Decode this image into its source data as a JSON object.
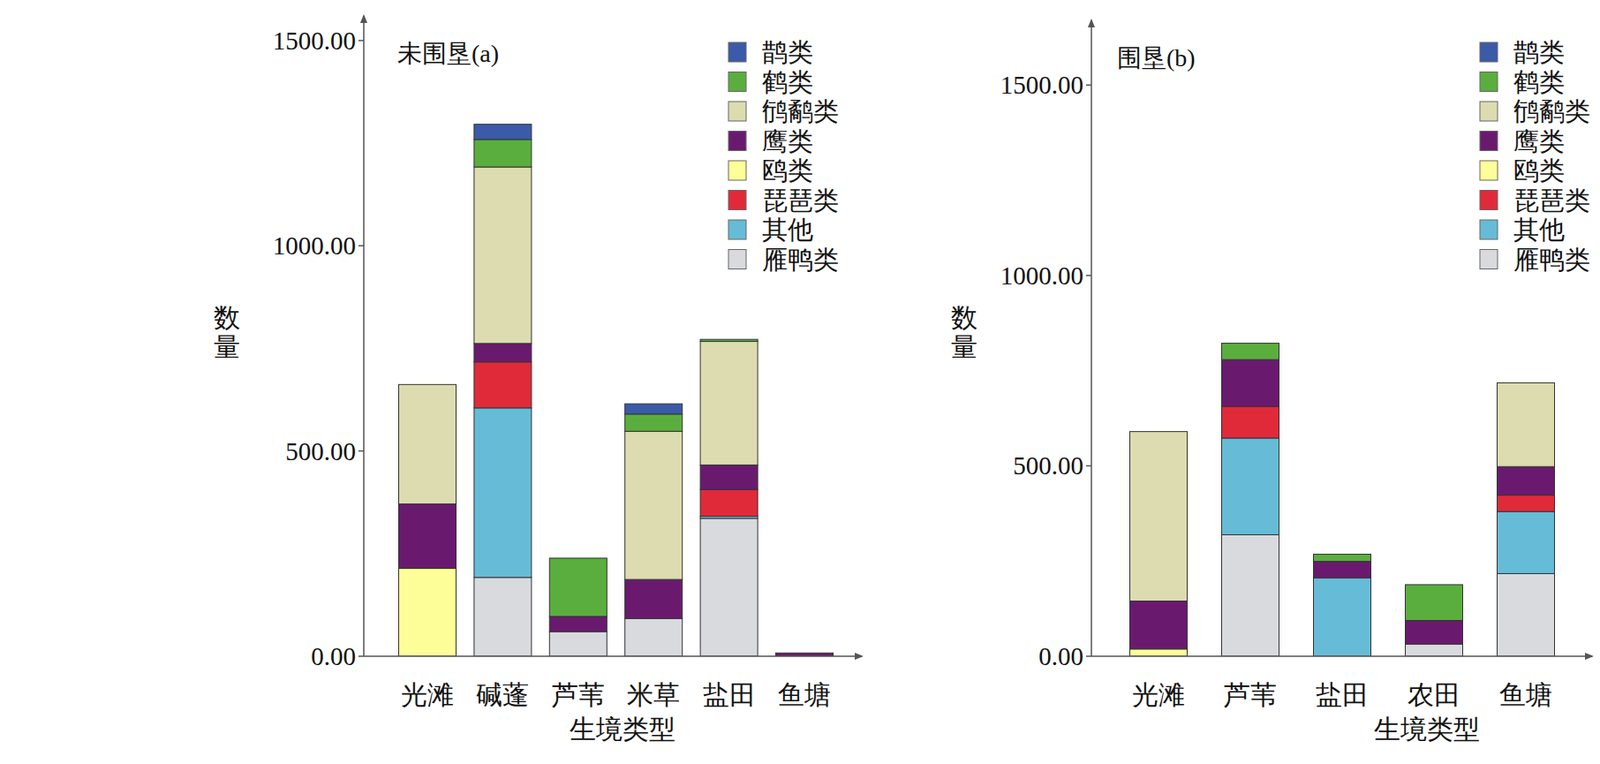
{
  "chart_data": [
    {
      "type": "bar",
      "stacked": true,
      "title": "未围垦(a)",
      "x_label": "生境类型",
      "y_label": "数量",
      "legend": "top-right",
      "categories": [
        "光滩",
        "碱蓬",
        "芦苇",
        "米草",
        "盐田",
        "鱼塘"
      ],
      "ylim": [
        0,
        1560
      ],
      "yticks": [
        {
          "value": 0,
          "label": "0.00"
        },
        {
          "value": 500,
          "label": "500.00"
        },
        {
          "value": 1000,
          "label": "1000.00"
        },
        {
          "value": 1500,
          "label": "1500.00"
        }
      ],
      "series": [
        {
          "name": "雁鸭类",
          "color": "#d9dade",
          "values": [
            0,
            192,
            60,
            92,
            336,
            0
          ]
        },
        {
          "name": "其他",
          "color": "#66bcd6",
          "values": [
            0,
            413,
            0,
            0,
            5,
            0
          ]
        },
        {
          "name": "琵琶类",
          "color": "#e02a3a",
          "values": [
            0,
            112,
            0,
            0,
            65,
            0
          ]
        },
        {
          "name": "鸥类",
          "color": "#fefe98",
          "values": [
            214,
            0,
            0,
            0,
            0,
            0
          ]
        },
        {
          "name": "鹰类",
          "color": "#6a1a6e",
          "values": [
            157,
            45,
            37,
            95,
            60,
            8
          ]
        },
        {
          "name": "鸻鹬类",
          "color": "#dcdcb0",
          "values": [
            291,
            430,
            0,
            361,
            301,
            0
          ]
        },
        {
          "name": "鹤类",
          "color": "#5aae3e",
          "values": [
            0,
            67,
            142,
            42,
            5,
            0
          ]
        },
        {
          "name": "鹊类",
          "color": "#3b5aa8",
          "values": [
            0,
            37,
            0,
            25,
            0,
            0
          ]
        }
      ]
    },
    {
      "type": "bar",
      "stacked": true,
      "title": "围垦(b)",
      "x_label": "生境类型",
      "y_label": "数量",
      "legend": "top-right",
      "categories": [
        "光滩",
        "芦苇",
        "盐田",
        "农田",
        "鱼塘"
      ],
      "ylim": [
        0,
        1670
      ],
      "yticks": [
        {
          "value": 0,
          "label": "0.00"
        },
        {
          "value": 500,
          "label": "500.00"
        },
        {
          "value": 1000,
          "label": "1000.00"
        },
        {
          "value": 1500,
          "label": "1500.00"
        }
      ],
      "series": [
        {
          "name": "雁鸭类",
          "color": "#d9dade",
          "values": [
            0,
            319,
            0,
            32,
            217
          ]
        },
        {
          "name": "其他",
          "color": "#66bcd6",
          "values": [
            0,
            254,
            206,
            0,
            163
          ]
        },
        {
          "name": "琵琶类",
          "color": "#e02a3a",
          "values": [
            0,
            83,
            0,
            0,
            43
          ]
        },
        {
          "name": "鸥类",
          "color": "#fefe98",
          "values": [
            19,
            0,
            0,
            0,
            0
          ]
        },
        {
          "name": "鹰类",
          "color": "#6a1a6e",
          "values": [
            126,
            123,
            43,
            62,
            75
          ]
        },
        {
          "name": "鸻鹬类",
          "color": "#dcdcb0",
          "values": [
            445,
            0,
            0,
            0,
            220
          ]
        },
        {
          "name": "鹤类",
          "color": "#5aae3e",
          "values": [
            0,
            43,
            19,
            94,
            0
          ]
        },
        {
          "name": "鹊类",
          "color": "#3b5aa8",
          "values": [
            0,
            0,
            0,
            0,
            0
          ]
        }
      ]
    }
  ]
}
